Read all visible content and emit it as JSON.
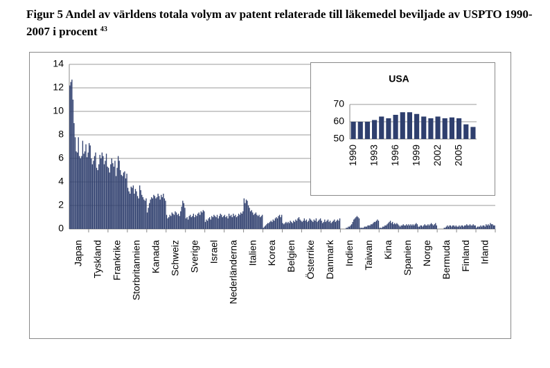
{
  "chart_data": [
    {
      "type": "bar",
      "title": "Figur 5 Andel av världens totala volym av patent relaterade till läkemedel beviljade av USPTO 1990-2007 i procent",
      "title_note": "43",
      "color": "#2f3f6e",
      "ylim": [
        0,
        14
      ],
      "yticks": [
        0,
        2,
        4,
        6,
        8,
        10,
        12,
        14
      ],
      "grid": true,
      "groups": [
        {
          "label": "Japan",
          "values": [
            12.2,
            12.5,
            12.7,
            11,
            9,
            7.8,
            6.6,
            6.5,
            7.8,
            6.2,
            6,
            6.2,
            7.5,
            6.4,
            6.6,
            7.2,
            6.1,
            6.5
          ]
        },
        {
          "label": "Tyskland",
          "values": [
            7.3,
            7.1,
            6,
            5.5,
            5.8,
            6.2,
            6.5,
            5.2,
            5,
            5.5,
            6.3,
            6,
            6.5,
            6.2,
            5.5,
            5.8,
            6.4,
            5.3
          ]
        },
        {
          "label": "Frankrike",
          "values": [
            5.2,
            4.8,
            5.5,
            6,
            5.6,
            5.3,
            5.8,
            4.5,
            5.2,
            6.2,
            5.8,
            5,
            4.6,
            4.5,
            4.8,
            4.9,
            4.3,
            4.7
          ]
        },
        {
          "label": "Storbritannien",
          "values": [
            3.5,
            3.2,
            3,
            3.6,
            3.5,
            3.7,
            3,
            3.4,
            3.2,
            2.8,
            2.6,
            3.7,
            3.3,
            2.9,
            2.7,
            2.5,
            2.4,
            2.6
          ]
        },
        {
          "label": "Kanada",
          "values": [
            1.4,
            1.8,
            2.2,
            2.5,
            2.7,
            2.6,
            2.9,
            2.8,
            2.6,
            2.7,
            3,
            2.8,
            2.5,
            2.9,
            2.7,
            3,
            2.6,
            2.4
          ]
        },
        {
          "label": "Schweiz",
          "values": [
            1.2,
            0.9,
            1,
            1.2,
            1.1,
            1.4,
            1.3,
            1.2,
            1.5,
            1.4,
            1.2,
            1.3,
            1.1,
            1.5,
            1.9,
            2.4,
            2.2,
            1.8
          ]
        },
        {
          "label": "Sverige",
          "values": [
            0.9,
            1,
            0.8,
            1.1,
            1.2,
            1,
            1.1,
            1.3,
            1,
            1.2,
            1.1,
            1.3,
            1.4,
            1.2,
            1.5,
            1.4,
            1.6,
            1.5
          ]
        },
        {
          "label": "Israel",
          "values": [
            0.6,
            0.8,
            0.7,
            0.9,
            1,
            0.8,
            1.1,
            1,
            1.2,
            1.1,
            1,
            1.2,
            0.9,
            1.1,
            1.3,
            1.2,
            1,
            1.1
          ]
        },
        {
          "label": "Nederländerna",
          "values": [
            1.2,
            1,
            1.1,
            0.9,
            1.3,
            1.1,
            1.2,
            1,
            1.3,
            1.1,
            1.2,
            1,
            1.1,
            1.3,
            1.2,
            1.4,
            1.3,
            1.5
          ]
        },
        {
          "label": "Italien",
          "values": [
            2.6,
            2.2,
            2.5,
            2.4,
            2,
            1.8,
            1.5,
            1.6,
            1.4,
            1.2,
            1.3,
            1.4,
            1.2,
            1.1,
            1.2,
            1,
            1.1,
            1.2
          ]
        },
        {
          "label": "Korea",
          "values": [
            0.1,
            0.2,
            0.3,
            0.4,
            0.5,
            0.5,
            0.6,
            0.7,
            0.6,
            0.8,
            0.7,
            0.9,
            1,
            0.9,
            1.1,
            1.2,
            1,
            1.2
          ]
        },
        {
          "label": "Belgien",
          "values": [
            0.5,
            0.4,
            0.5,
            0.6,
            0.5,
            0.6,
            0.5,
            0.7,
            0.6,
            0.5,
            0.7,
            0.6,
            0.8,
            0.7,
            0.9,
            1,
            0.8,
            0.7
          ]
        },
        {
          "label": "Österrike",
          "values": [
            0.6,
            0.7,
            0.9,
            0.7,
            0.8,
            0.6,
            0.7,
            0.9,
            0.8,
            0.7,
            0.6,
            0.8,
            0.7,
            0.9,
            0.6,
            0.7,
            0.8,
            0.9
          ]
        },
        {
          "label": "Danmark",
          "values": [
            0.7,
            0.5,
            0.6,
            0.8,
            0.6,
            0.7,
            0.8,
            0.6,
            0.7,
            0.5,
            0.6,
            0.7,
            0.8,
            0.6,
            0.7,
            0.8,
            0.7,
            0.9
          ]
        },
        {
          "label": "Indien",
          "values": [
            0,
            0,
            0,
            0,
            0,
            0.1,
            0.1,
            0.2,
            0.2,
            0.3,
            0.4,
            0.6,
            0.8,
            0.9,
            1,
            1.1,
            1,
            0.9
          ]
        },
        {
          "label": "Taiwan",
          "values": [
            0.1,
            0.1,
            0.1,
            0.1,
            0.2,
            0.2,
            0.2,
            0.3,
            0.3,
            0.3,
            0.4,
            0.4,
            0.5,
            0.6,
            0.6,
            0.7,
            0.8,
            0.7
          ]
        },
        {
          "label": "Kina",
          "values": [
            0.1,
            0.1,
            0.1,
            0.2,
            0.2,
            0.3,
            0.3,
            0.4,
            0.5,
            0.6,
            0.7,
            0.5,
            0.6,
            0.4,
            0.5,
            0.4,
            0.5,
            0.4
          ]
        },
        {
          "label": "Spanien",
          "values": [
            0.3,
            0.2,
            0.3,
            0.3,
            0.4,
            0.3,
            0.3,
            0.4,
            0.3,
            0.4,
            0.3,
            0.4,
            0.3,
            0.4,
            0.3,
            0.4,
            0.5,
            0.4
          ]
        },
        {
          "label": "Norge",
          "values": [
            0.2,
            0.2,
            0.3,
            0.3,
            0.2,
            0.3,
            0.4,
            0.3,
            0.3,
            0.4,
            0.3,
            0.4,
            0.5,
            0.4,
            0.3,
            0.4,
            0.5,
            0.3
          ]
        },
        {
          "label": "Bermuda",
          "values": [
            0,
            0,
            0,
            0,
            0,
            0,
            0.1,
            0.1,
            0.2,
            0.3,
            0.2,
            0.3,
            0.3,
            0.2,
            0.3,
            0.3,
            0.2,
            0.3
          ]
        },
        {
          "label": "Finland",
          "values": [
            0.2,
            0.2,
            0.3,
            0.2,
            0.3,
            0.3,
            0.2,
            0.3,
            0.3,
            0.4,
            0.3,
            0.3,
            0.4,
            0.3,
            0.3,
            0.4,
            0.3,
            0.3
          ]
        },
        {
          "label": "Irland",
          "values": [
            0.1,
            0.2,
            0.2,
            0.2,
            0.3,
            0.2,
            0.3,
            0.3,
            0.2,
            0.4,
            0.3,
            0.4,
            0.3,
            0.5,
            0.4,
            0.4,
            0.3,
            0.3
          ]
        }
      ]
    },
    {
      "type": "bar",
      "title": "USA",
      "color": "#2f3f6e",
      "ylim": [
        50,
        70
      ],
      "yticks": [
        50,
        60,
        70
      ],
      "grid": true,
      "categories": [
        "1990",
        null,
        null,
        "1993",
        null,
        null,
        "1996",
        null,
        null,
        "1999",
        null,
        null,
        "2002",
        null,
        null,
        "2005",
        null,
        null
      ],
      "values": [
        60,
        60,
        60,
        61,
        63,
        62,
        64,
        65.5,
        65.5,
        64.5,
        63,
        62,
        63,
        62,
        62.5,
        62,
        58.5,
        57
      ]
    }
  ]
}
